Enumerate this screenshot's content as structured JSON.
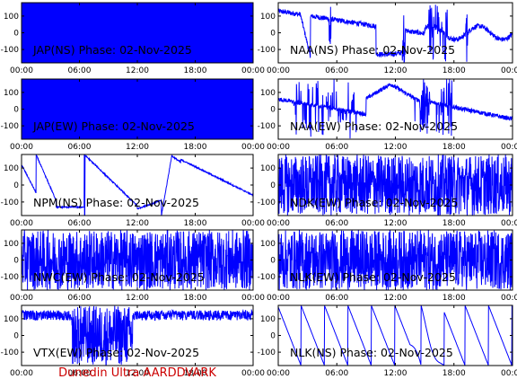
{
  "footer": "Dunedin Ultra AARDDVARK",
  "chart_data": [
    {
      "type": "line",
      "title": "JAP(NS) Phase: 02-Nov-2025",
      "x_ticks": [
        "00:00",
        "06:00",
        "12:00",
        "18:00",
        "00:00"
      ],
      "y_ticks": [
        "100",
        "0",
        "-100"
      ],
      "ylim": [
        -180,
        180
      ],
      "xlim": [
        0,
        24
      ],
      "color": "#0000ff",
      "pattern": "solid"
    },
    {
      "type": "line",
      "title": "NAA(NS) Phase: 02-Nov-2025",
      "x_ticks": [
        "00:00",
        "06:00",
        "12:00",
        "18:00",
        "00:00"
      ],
      "y_ticks": [
        "100",
        "0",
        "-100"
      ],
      "ylim": [
        -180,
        180
      ],
      "xlim": [
        0,
        24
      ],
      "color": "#0000ff",
      "pattern": "naa_ns"
    },
    {
      "type": "line",
      "title": "JAP(EW) Phase: 02-Nov-2025",
      "x_ticks": [
        "00:00",
        "06:00",
        "12:00",
        "18:00",
        "00:00"
      ],
      "y_ticks": [
        "100",
        "0",
        "-100"
      ],
      "ylim": [
        -180,
        180
      ],
      "xlim": [
        0,
        24
      ],
      "color": "#0000ff",
      "pattern": "solid"
    },
    {
      "type": "line",
      "title": "NAA(EW) Phase: 02-Nov-2025",
      "x_ticks": [
        "00:00",
        "06:00",
        "12:00",
        "18:00",
        "00:00"
      ],
      "y_ticks": [
        "100",
        "0",
        "-100"
      ],
      "ylim": [
        -180,
        180
      ],
      "xlim": [
        0,
        24
      ],
      "color": "#0000ff",
      "pattern": "naa_ew"
    },
    {
      "type": "line",
      "title": "NPM(NS) Phase: 02-Nov-2025",
      "x_ticks": [
        "00:00",
        "06:00",
        "12:00",
        "18:00",
        "00:00"
      ],
      "y_ticks": [
        "100",
        "0",
        "-100"
      ],
      "ylim": [
        -180,
        180
      ],
      "xlim": [
        0,
        24
      ],
      "color": "#0000ff",
      "pattern": "npm"
    },
    {
      "type": "line",
      "title": "NDK(EW) Phase: 02-Nov-2025",
      "x_ticks": [
        "00:00",
        "06:00",
        "12:00",
        "18:00",
        "00:00"
      ],
      "y_ticks": [
        "100",
        "0",
        "-100"
      ],
      "ylim": [
        -180,
        180
      ],
      "xlim": [
        0,
        24
      ],
      "color": "#0000ff",
      "pattern": "noise"
    },
    {
      "type": "line",
      "title": "NWC(EW) Phase: 02-Nov-2025",
      "x_ticks": [
        "00:00",
        "06:00",
        "12:00",
        "18:00",
        "00:00"
      ],
      "y_ticks": [
        "100",
        "0",
        "-100"
      ],
      "ylim": [
        -180,
        180
      ],
      "xlim": [
        0,
        24
      ],
      "color": "#0000ff",
      "pattern": "noise"
    },
    {
      "type": "line",
      "title": "NLK(EW) Phase: 02-Nov-2025",
      "x_ticks": [
        "00:00",
        "06:00",
        "12:00",
        "18:00",
        "00:00"
      ],
      "y_ticks": [
        "100",
        "0",
        "-100"
      ],
      "ylim": [
        -180,
        180
      ],
      "xlim": [
        0,
        24
      ],
      "color": "#0000ff",
      "pattern": "noise"
    },
    {
      "type": "line",
      "title": "VTX(EW) Phase: 02-Nov-2025",
      "x_ticks": [
        "00:00",
        "06:00",
        "12:00",
        "18:00",
        "00:00"
      ],
      "y_ticks": [
        "100",
        "0",
        "-100"
      ],
      "ylim": [
        -180,
        180
      ],
      "xlim": [
        0,
        24
      ],
      "color": "#0000ff",
      "pattern": "vtx"
    },
    {
      "type": "line",
      "title": "NLK(NS) Phase: 02-Nov-2025",
      "x_ticks": [
        "00:00",
        "06:00",
        "12:00",
        "18:00",
        "00:00"
      ],
      "y_ticks": [
        "100",
        "0",
        "-100"
      ],
      "ylim": [
        -180,
        180
      ],
      "xlim": [
        0,
        24
      ],
      "color": "#0000ff",
      "pattern": "saw"
    }
  ]
}
